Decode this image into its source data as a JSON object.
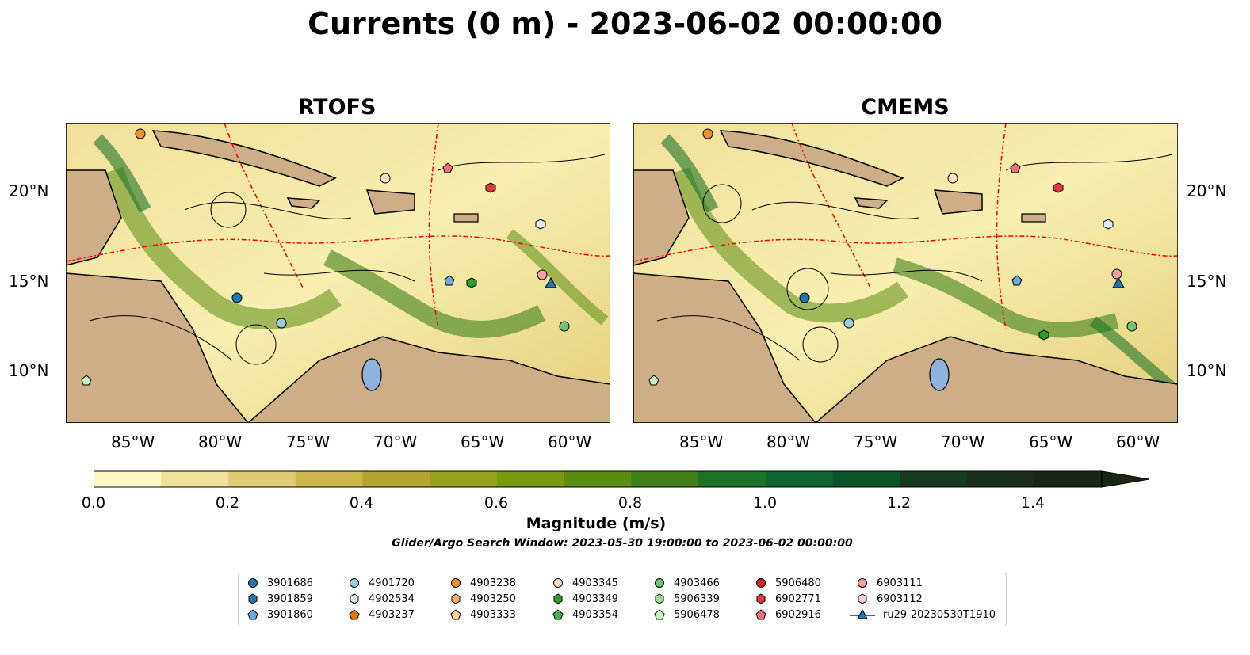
{
  "title": "Currents (0 m) - 2023-06-02 00:00:00",
  "panels": [
    {
      "title": "RTOFS"
    },
    {
      "title": "CMEMS"
    }
  ],
  "lat_ticks": [
    "20°N",
    "15°N",
    "10°N"
  ],
  "lon_ticks": [
    "85°W",
    "80°W",
    "75°W",
    "70°W",
    "65°W",
    "60°W"
  ],
  "colorbar": {
    "label": "Magnitude (m/s)",
    "ticks": [
      "0.0",
      "0.2",
      "0.4",
      "0.6",
      "0.8",
      "1.0",
      "1.2",
      "1.4"
    ],
    "range": [
      0.0,
      1.5
    ],
    "extend": "max",
    "colors": [
      "#fdf7c3",
      "#efe19a",
      "#dfcc72",
      "#cdb64c",
      "#b3a531",
      "#98a11f",
      "#7a9a12",
      "#5b8d12",
      "#3f8019",
      "#1f7326",
      "#0e652f",
      "#0b542b",
      "#163b21",
      "#1a2e1b",
      "#1c2617"
    ]
  },
  "search_window": "Glider/Argo Search Window: 2023-05-30 19:00:00 to 2023-06-02 00:00:00",
  "legend": [
    {
      "label": "3901686",
      "marker": "circle",
      "color": "#1f77b4"
    },
    {
      "label": "3901859",
      "marker": "hexagon",
      "color": "#1f77b4"
    },
    {
      "label": "3901860",
      "marker": "pentagon",
      "color": "#6fa8dc"
    },
    {
      "label": "4901720",
      "marker": "circle",
      "color": "#9ecae1"
    },
    {
      "label": "4902534",
      "marker": "hexagon",
      "color": "#deebf7"
    },
    {
      "label": "4903237",
      "marker": "pentagon",
      "color": "#e6750a"
    },
    {
      "label": "4903238",
      "marker": "circle",
      "color": "#f28e2b"
    },
    {
      "label": "4903250",
      "marker": "hexagon",
      "color": "#fdae6b"
    },
    {
      "label": "4903333",
      "marker": "pentagon",
      "color": "#fdd0a2"
    },
    {
      "label": "4903345",
      "marker": "circle",
      "color": "#fde0c5"
    },
    {
      "label": "4903349",
      "marker": "hexagon",
      "color": "#2ca02c"
    },
    {
      "label": "4903354",
      "marker": "pentagon",
      "color": "#4daf4a"
    },
    {
      "label": "4903466",
      "marker": "circle",
      "color": "#74c476"
    },
    {
      "label": "5906339",
      "marker": "hexagon",
      "color": "#a1d99b"
    },
    {
      "label": "5906478",
      "marker": "pentagon",
      "color": "#c7f5c0"
    },
    {
      "label": "5906480",
      "marker": "circle",
      "color": "#d62728"
    },
    {
      "label": "6902771",
      "marker": "hexagon",
      "color": "#de3a3a"
    },
    {
      "label": "6902916",
      "marker": "pentagon",
      "color": "#f0707a"
    },
    {
      "label": "6903111",
      "marker": "circle",
      "color": "#f4a0a0"
    },
    {
      "label": "6903112",
      "marker": "hexagon",
      "color": "#fcd1d1"
    },
    {
      "label": "ru29-20230530T1910",
      "marker": "triangle-line",
      "color": "#1f77b4"
    }
  ],
  "colors": {
    "land": "#cdae86",
    "lake": "#8fb3e0",
    "eez_line": "#ff0000",
    "border_line": "#000000"
  }
}
